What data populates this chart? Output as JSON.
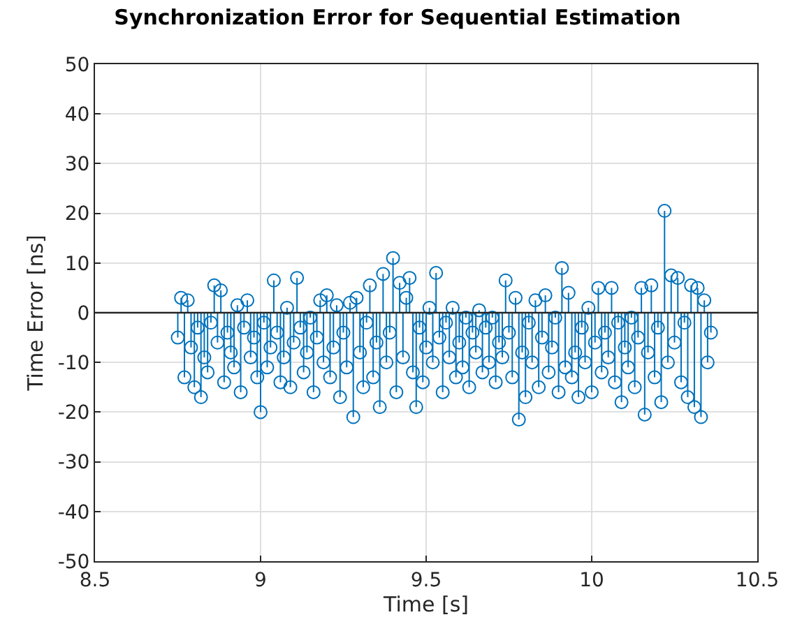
{
  "chart_data": {
    "type": "lollipop",
    "title": "Synchronization Error for Sequential Estimation",
    "xlabel": "Time [s]",
    "ylabel": "Time Error [ns]",
    "x": [
      8.75,
      8.76,
      8.77,
      8.78,
      8.79,
      8.8,
      8.81,
      8.82,
      8.83,
      8.84,
      8.85,
      8.86,
      8.87,
      8.88,
      8.89,
      8.9,
      8.91,
      8.92,
      8.93,
      8.94,
      8.95,
      8.96,
      8.97,
      8.98,
      8.99,
      9.0,
      9.01,
      9.02,
      9.03,
      9.04,
      9.05,
      9.06,
      9.07,
      9.08,
      9.09,
      9.1,
      9.11,
      9.12,
      9.13,
      9.14,
      9.15,
      9.16,
      9.17,
      9.18,
      9.19,
      9.2,
      9.21,
      9.22,
      9.23,
      9.24,
      9.25,
      9.26,
      9.27,
      9.28,
      9.29,
      9.3,
      9.31,
      9.32,
      9.33,
      9.34,
      9.35,
      9.36,
      9.37,
      9.38,
      9.39,
      9.4,
      9.41,
      9.42,
      9.43,
      9.44,
      9.45,
      9.46,
      9.47,
      9.48,
      9.49,
      9.5,
      9.51,
      9.52,
      9.53,
      9.54,
      9.55,
      9.56,
      9.57,
      9.58,
      9.59,
      9.6,
      9.61,
      9.62,
      9.63,
      9.64,
      9.65,
      9.66,
      9.67,
      9.68,
      9.69,
      9.7,
      9.71,
      9.72,
      9.73,
      9.74,
      9.75,
      9.76,
      9.77,
      9.78,
      9.79,
      9.8,
      9.81,
      9.82,
      9.83,
      9.84,
      9.85,
      9.86,
      9.87,
      9.88,
      9.89,
      9.9,
      9.91,
      9.92,
      9.93,
      9.94,
      9.95,
      9.96,
      9.97,
      9.98,
      9.99,
      10.0,
      10.01,
      10.02,
      10.03,
      10.04,
      10.05,
      10.06,
      10.07,
      10.08,
      10.09,
      10.1,
      10.11,
      10.12,
      10.13,
      10.14,
      10.15,
      10.16,
      10.17,
      10.18,
      10.19,
      10.2,
      10.21,
      10.22,
      10.23,
      10.24,
      10.25,
      10.26,
      10.27,
      10.28,
      10.29,
      10.3,
      10.31,
      10.32,
      10.33,
      10.34,
      10.35,
      10.36
    ],
    "series": [
      {
        "color": "#0072bd",
        "values": [
          -5,
          3,
          -13,
          2.5,
          -7,
          -15,
          -3,
          -17,
          -9,
          -12,
          -2,
          5.5,
          -6,
          4.5,
          -14,
          -4,
          -8,
          -11,
          1.5,
          -16,
          -3,
          2.5,
          -9,
          -5,
          -13,
          -20,
          -2,
          -11,
          -7,
          6.5,
          -4,
          -14,
          -9,
          1,
          -15,
          -6,
          7,
          -3,
          -12,
          -8,
          -1,
          -16,
          -5,
          2.5,
          -10,
          3.5,
          -13,
          -7,
          1.5,
          -17,
          -4,
          -11,
          2,
          -21,
          3,
          -8,
          -15,
          -2,
          5.5,
          -13,
          -6,
          -19,
          7.8,
          -10,
          -4,
          11,
          -16,
          6,
          -9,
          3,
          7,
          -12,
          -19,
          -3,
          -14,
          -7,
          1,
          -10,
          8,
          -5,
          -16,
          -2,
          -9,
          1,
          -13,
          -6,
          -11,
          -1,
          -15,
          -4,
          -8,
          0.5,
          -12,
          -3,
          -10,
          -1,
          -14,
          -6,
          -9,
          6.5,
          -4,
          -13,
          3,
          -21.5,
          -8,
          -17,
          -2,
          -10,
          2.5,
          -15,
          -5,
          3.5,
          -12,
          -7,
          -1,
          -16,
          9,
          -11,
          4,
          -13,
          -8,
          -17,
          -3,
          -10,
          1,
          -16,
          -6,
          5,
          -12,
          -4,
          -9,
          5,
          -14,
          -2,
          -18,
          -7,
          -11,
          -1,
          -15,
          -5,
          5,
          -20.5,
          -8,
          5.5,
          -13,
          -3,
          -18,
          20.5,
          -10,
          7.5,
          -6,
          7,
          -14,
          -2,
          -17,
          5.5,
          -19,
          5,
          -21,
          2.5,
          -10,
          -4
        ]
      }
    ],
    "marker": "circle",
    "ref_lines": [
      {
        "axis": "y",
        "value": 0,
        "color": "#262626"
      }
    ],
    "xlim": [
      8.5,
      10.5
    ],
    "xticks": [
      8.5,
      9,
      9.5,
      10,
      10.5
    ],
    "ylim": [
      -50,
      50
    ],
    "yticks": [
      -50,
      -40,
      -30,
      -20,
      -10,
      0,
      10,
      20,
      30,
      40,
      50
    ],
    "grid": true
  }
}
